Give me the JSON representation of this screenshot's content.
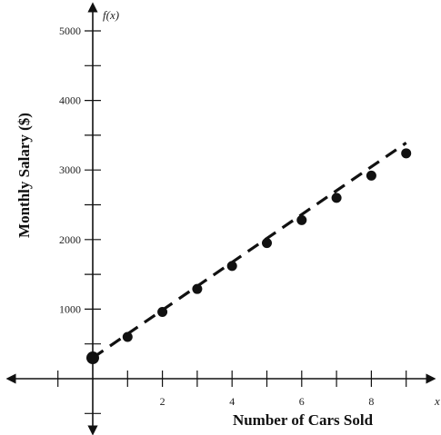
{
  "chart_data": {
    "type": "scatter",
    "xlabel": "Number of Cars Sold",
    "ylabel": "Monthly Salary ($)",
    "y_axis_name": "f(x)",
    "x_axis_name": "x",
    "x_ticks": [
      2,
      4,
      6,
      8
    ],
    "y_ticks": [
      1000,
      2000,
      3000,
      4000,
      5000
    ],
    "xlim": [
      -2.3,
      9.8
    ],
    "ylim": [
      -800,
      5400
    ],
    "grid": false,
    "trend_line": {
      "style": "dashed",
      "x": [
        0,
        9
      ],
      "y": [
        300,
        3390
      ]
    },
    "points": [
      {
        "x": 0,
        "y": 300
      },
      {
        "x": 1,
        "y": 600
      },
      {
        "x": 2,
        "y": 960
      },
      {
        "x": 3,
        "y": 1290
      },
      {
        "x": 4,
        "y": 1620
      },
      {
        "x": 5,
        "y": 1950
      },
      {
        "x": 6,
        "y": 2280
      },
      {
        "x": 7,
        "y": 2600
      },
      {
        "x": 8,
        "y": 2920
      },
      {
        "x": 9,
        "y": 3240
      }
    ]
  }
}
